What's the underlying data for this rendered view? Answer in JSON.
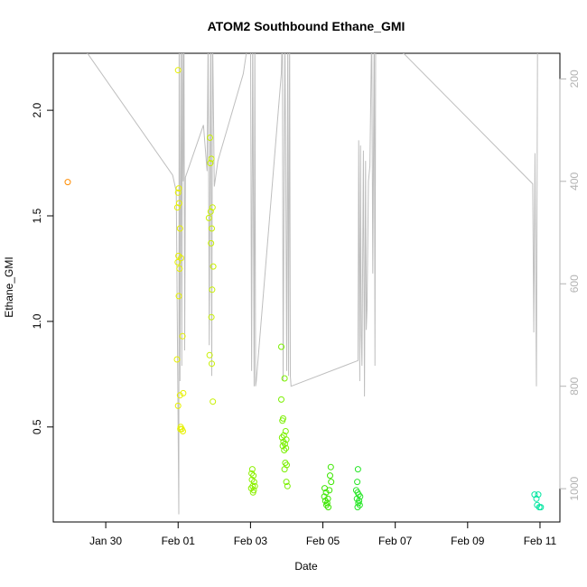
{
  "chart_data": {
    "type": "scatter",
    "title": "ATOM2 Southbound Ethane_GMI",
    "xlabel": "Date",
    "ylabel": "Ethane_GMI",
    "x_ticks": [
      "Jan 30",
      "Feb 01",
      "Feb 03",
      "Feb 05",
      "Feb 07",
      "Feb 09",
      "Feb 11"
    ],
    "x_tick_days": [
      1,
      3,
      5,
      7,
      9,
      11,
      13
    ],
    "y_ticks": [
      "0.5",
      "1.0",
      "1.5",
      "2.0"
    ],
    "y_tick_values": [
      0.5,
      1.0,
      1.5,
      2.0
    ],
    "y_right_ticks": [
      "200",
      "400",
      "600",
      "800",
      "1000"
    ],
    "y_right_tick_values": [
      200,
      400,
      600,
      800,
      1000
    ],
    "ylim": [
      0.05,
      2.27
    ],
    "xlim_days": [
      -0.45,
      13.55
    ],
    "y_right_lim": [
      1065,
      150
    ],
    "grid": false,
    "colors": {
      "line": "#bebebe",
      "right_axis": "#b3b3b3",
      "early": "#ff8c00",
      "yellow": "#e6f000",
      "yellowgreen": "#b4f000",
      "green": "#5ae600",
      "cyan": "#00e6a0"
    },
    "series": [
      {
        "color": "#ff8c00",
        "points": [
          [
            -0.05,
            1.66
          ]
        ]
      },
      {
        "color": "#e6f000",
        "points": [
          [
            3.0,
            2.19
          ],
          [
            3.02,
            1.63
          ],
          [
            3.0,
            1.61
          ],
          [
            3.03,
            1.56
          ],
          [
            2.98,
            1.54
          ],
          [
            3.05,
            1.44
          ],
          [
            3.01,
            1.31
          ],
          [
            2.99,
            1.28
          ],
          [
            3.04,
            1.25
          ],
          [
            3.08,
            1.3
          ],
          [
            3.02,
            1.12
          ],
          [
            3.12,
            0.93
          ],
          [
            2.97,
            0.82
          ],
          [
            3.05,
            0.65
          ],
          [
            3.14,
            0.66
          ],
          [
            3.0,
            0.6
          ],
          [
            3.07,
            0.5
          ],
          [
            3.1,
            0.49
          ],
          [
            3.13,
            0.48
          ],
          [
            3.06,
            0.49
          ]
        ]
      },
      {
        "color": "#c8f000",
        "points": [
          [
            3.88,
            1.87
          ],
          [
            3.92,
            1.77
          ],
          [
            3.89,
            1.75
          ],
          [
            3.95,
            1.54
          ],
          [
            3.9,
            1.52
          ],
          [
            3.85,
            1.49
          ],
          [
            3.93,
            1.44
          ],
          [
            3.91,
            1.37
          ],
          [
            3.97,
            1.26
          ],
          [
            3.94,
            1.15
          ],
          [
            3.92,
            1.02
          ],
          [
            3.87,
            0.84
          ],
          [
            3.93,
            0.8
          ],
          [
            3.96,
            0.62
          ]
        ]
      },
      {
        "color": "#8cf000",
        "points": [
          [
            5.05,
            0.3
          ],
          [
            5.03,
            0.28
          ],
          [
            5.08,
            0.27
          ],
          [
            5.04,
            0.25
          ],
          [
            5.1,
            0.24
          ],
          [
            5.06,
            0.22
          ],
          [
            5.02,
            0.21
          ],
          [
            5.09,
            0.2
          ],
          [
            5.12,
            0.22
          ],
          [
            5.07,
            0.19
          ]
        ]
      },
      {
        "color": "#7af000",
        "points": [
          [
            5.85,
            0.88
          ],
          [
            5.94,
            0.73
          ],
          [
            5.85,
            0.63
          ],
          [
            5.9,
            0.54
          ],
          [
            5.88,
            0.53
          ],
          [
            5.97,
            0.48
          ],
          [
            5.92,
            0.46
          ],
          [
            5.87,
            0.45
          ],
          [
            5.99,
            0.44
          ],
          [
            5.91,
            0.43
          ],
          [
            5.95,
            0.42
          ],
          [
            5.89,
            0.41
          ],
          [
            5.98,
            0.4
          ],
          [
            5.93,
            0.39
          ],
          [
            5.96,
            0.33
          ],
          [
            6.0,
            0.32
          ],
          [
            5.94,
            0.3
          ],
          [
            5.99,
            0.24
          ],
          [
            6.02,
            0.22
          ]
        ]
      },
      {
        "color": "#3ce600",
        "points": [
          [
            7.05,
            0.21
          ],
          [
            7.09,
            0.19
          ],
          [
            7.04,
            0.17
          ],
          [
            7.07,
            0.15
          ],
          [
            7.12,
            0.14
          ],
          [
            7.1,
            0.13
          ],
          [
            7.15,
            0.12
          ],
          [
            7.22,
            0.31
          ],
          [
            7.2,
            0.27
          ],
          [
            7.23,
            0.24
          ],
          [
            7.18,
            0.2
          ],
          [
            7.14,
            0.16
          ]
        ]
      },
      {
        "color": "#28e628",
        "points": [
          [
            7.97,
            0.3
          ],
          [
            7.95,
            0.24
          ],
          [
            7.92,
            0.2
          ],
          [
            7.96,
            0.19
          ],
          [
            7.99,
            0.18
          ],
          [
            8.03,
            0.17
          ],
          [
            7.94,
            0.16
          ],
          [
            8.0,
            0.15
          ],
          [
            7.98,
            0.14
          ],
          [
            8.02,
            0.13
          ],
          [
            7.96,
            0.12
          ]
        ]
      },
      {
        "color": "#00e6a0",
        "points": [
          [
            12.85,
            0.18
          ],
          [
            12.9,
            0.16
          ],
          [
            12.95,
            0.18
          ],
          [
            12.92,
            0.13
          ],
          [
            12.98,
            0.12
          ],
          [
            13.02,
            0.12
          ]
        ]
      }
    ],
    "profile_line": [
      [
        0.0,
        100
      ],
      [
        2.85,
        388
      ],
      [
        2.95,
        420
      ],
      [
        3.02,
        1050
      ],
      [
        3.03,
        95
      ],
      [
        3.05,
        790
      ],
      [
        3.08,
        95
      ],
      [
        3.1,
        760
      ],
      [
        3.12,
        95
      ],
      [
        3.14,
        400
      ],
      [
        3.16,
        95
      ],
      [
        3.18,
        730
      ],
      [
        3.2,
        392
      ],
      [
        3.7,
        290
      ],
      [
        3.8,
        380
      ],
      [
        3.83,
        110
      ],
      [
        3.86,
        720
      ],
      [
        3.9,
        95
      ],
      [
        3.93,
        780
      ],
      [
        3.95,
        95
      ],
      [
        4.0,
        410
      ],
      [
        4.1,
        360
      ],
      [
        4.8,
        190
      ],
      [
        5.0,
        95
      ],
      [
        5.03,
        770
      ],
      [
        5.06,
        95
      ],
      [
        5.1,
        800
      ],
      [
        5.12,
        95
      ],
      [
        5.14,
        800
      ],
      [
        5.16,
        790
      ],
      [
        5.85,
        190
      ],
      [
        5.88,
        95
      ],
      [
        5.9,
        790
      ],
      [
        5.95,
        95
      ],
      [
        6.0,
        770
      ],
      [
        6.03,
        95
      ],
      [
        6.05,
        780
      ],
      [
        6.08,
        95
      ],
      [
        6.1,
        780
      ],
      [
        6.12,
        800
      ],
      [
        7.97,
        750
      ],
      [
        7.99,
        320
      ],
      [
        8.02,
        790
      ],
      [
        8.04,
        330
      ],
      [
        8.06,
        700
      ],
      [
        8.08,
        760
      ],
      [
        8.12,
        340
      ],
      [
        8.15,
        820
      ],
      [
        8.18,
        360
      ],
      [
        8.2,
        690
      ],
      [
        8.22,
        650
      ],
      [
        8.26,
        400
      ],
      [
        8.3,
        370
      ],
      [
        8.35,
        95
      ],
      [
        8.38,
        580
      ],
      [
        8.42,
        95
      ],
      [
        8.44,
        760
      ],
      [
        8.46,
        95
      ],
      [
        12.8,
        405
      ],
      [
        12.83,
        695
      ],
      [
        12.86,
        345
      ],
      [
        12.9,
        800
      ],
      [
        12.93,
        150
      ],
      [
        12.95,
        80
      ]
    ]
  }
}
